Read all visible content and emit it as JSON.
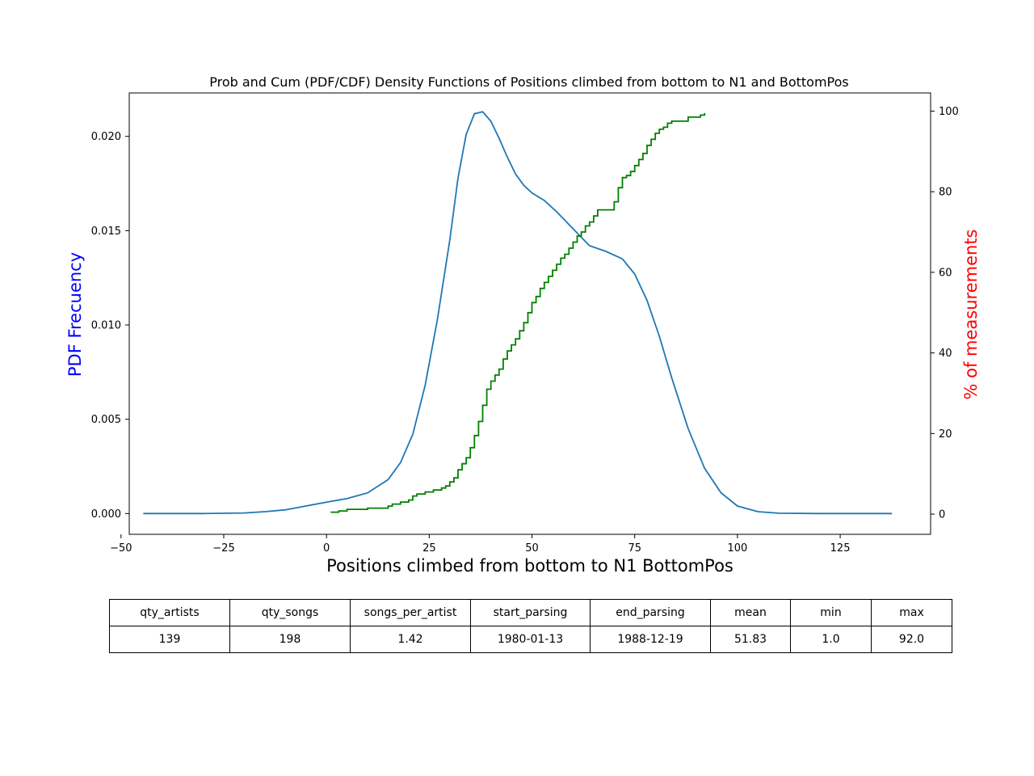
{
  "chart_data": {
    "type": "line",
    "title": "Prob and Cum (PDF/CDF) Density Functions of Positions climbed from bottom to N1 and BottomPos",
    "xlabel": "Positions climbed from bottom to N1 BottomPos",
    "ylabel": "PDF Frecuency",
    "y2label": "% of measurements",
    "xlim": [
      -48,
      147
    ],
    "ylim": [
      -0.0011,
      0.0223
    ],
    "y2lim": [
      -5,
      104.5
    ],
    "xticks": [
      -50,
      -25,
      0,
      25,
      50,
      75,
      100,
      125
    ],
    "yticks": [
      0.0,
      0.005,
      0.01,
      0.015,
      0.02
    ],
    "ytick_labels": [
      "0.000",
      "0.005",
      "0.010",
      "0.015",
      "0.020"
    ],
    "y2ticks": [
      0,
      20,
      40,
      60,
      80,
      100
    ],
    "colors": {
      "pdf": "#1f77b4",
      "cdf": "#008000",
      "ylabel": "#0000ff",
      "y2label": "#ff0000"
    },
    "grid": false,
    "series": [
      {
        "axis": "left",
        "x": [
          -44.6,
          -30,
          -20,
          -15,
          -10,
          -5,
          0,
          5,
          10,
          15,
          18,
          21,
          24,
          27,
          30,
          32,
          34,
          36,
          38,
          40,
          42,
          44,
          46,
          48,
          50,
          53,
          56,
          60,
          64,
          68,
          72,
          75,
          78,
          81,
          84,
          88,
          92,
          96,
          100,
          105,
          110,
          120,
          137.6
        ],
        "values": [
          0.0,
          0.0,
          3e-05,
          0.0001,
          0.0002,
          0.0004,
          0.0006,
          0.0008,
          0.0011,
          0.0018,
          0.0027,
          0.0042,
          0.0068,
          0.0103,
          0.0145,
          0.0178,
          0.0201,
          0.0212,
          0.0213,
          0.0208,
          0.0199,
          0.0189,
          0.018,
          0.0174,
          0.017,
          0.0166,
          0.016,
          0.0151,
          0.0142,
          0.0139,
          0.0135,
          0.0127,
          0.0113,
          0.0094,
          0.0072,
          0.0045,
          0.0024,
          0.0011,
          0.0004,
          0.0001,
          2e-05,
          0.0,
          0.0
        ]
      },
      {
        "axis": "right",
        "x": [
          1,
          3,
          5,
          10,
          15,
          16,
          18,
          20,
          21,
          22,
          24,
          26,
          28,
          29,
          30,
          31,
          32,
          33,
          34,
          35,
          36,
          37,
          38,
          39,
          40,
          41,
          42,
          43,
          44,
          45,
          46,
          47,
          48,
          49,
          50,
          51,
          52,
          53,
          54,
          55,
          56,
          57,
          58,
          59,
          60,
          61,
          62,
          63,
          64,
          65,
          66,
          70,
          71,
          72,
          73,
          74,
          75,
          76,
          77,
          78,
          79,
          80,
          81,
          82,
          83,
          84,
          88,
          91,
          92
        ],
        "values": [
          0.5,
          0.8,
          1.2,
          1.5,
          2.0,
          2.5,
          3.0,
          3.5,
          4.5,
          5.0,
          5.5,
          6.0,
          6.5,
          7.0,
          8.0,
          9.0,
          11.0,
          12.5,
          14.0,
          16.5,
          19.5,
          23.0,
          27.0,
          31.0,
          33.0,
          34.5,
          36.0,
          38.5,
          40.5,
          42.0,
          43.5,
          45.5,
          47.5,
          50.0,
          52.5,
          54.0,
          56.0,
          57.5,
          59.0,
          60.5,
          62.0,
          63.5,
          64.5,
          66.0,
          67.5,
          69.0,
          70.0,
          71.5,
          72.5,
          74.0,
          75.5,
          77.5,
          81.0,
          83.5,
          84.0,
          85.0,
          86.5,
          88.0,
          89.5,
          91.5,
          93.0,
          94.5,
          95.5,
          96.0,
          97.0,
          97.5,
          98.5,
          99.0,
          99.5
        ]
      }
    ]
  },
  "table": {
    "headers": [
      "qty_artists",
      "qty_songs",
      "songs_per_artist",
      "start_parsing",
      "end_parsing",
      "mean",
      "min",
      "max"
    ],
    "rows": [
      [
        "139",
        "198",
        "1.42",
        "1980-01-13",
        "1988-12-19",
        "51.83",
        "1.0",
        "92.0"
      ]
    ]
  }
}
